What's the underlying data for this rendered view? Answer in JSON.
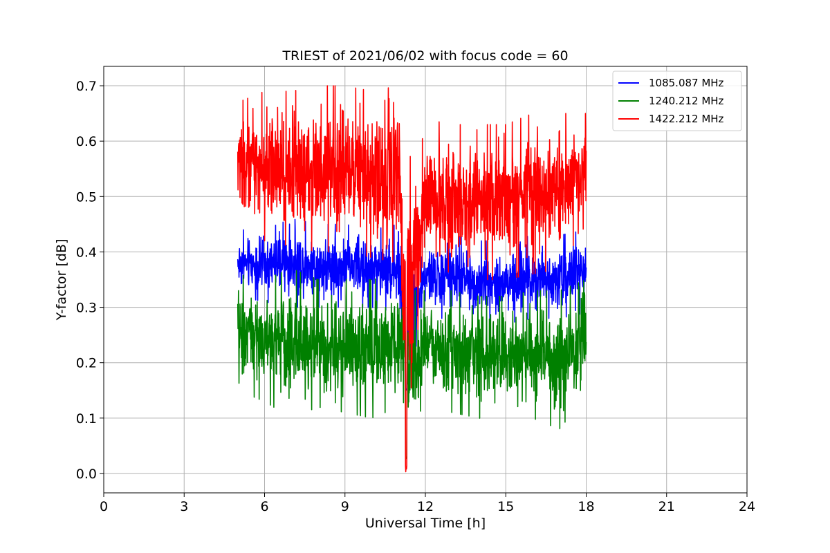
{
  "chart_data": {
    "type": "line",
    "title": "TRIEST of 2021/06/02 with focus code = 60",
    "xlabel": "Universal Time [h]",
    "ylabel": "Y-factor [dB]",
    "xlim": [
      0,
      24
    ],
    "ylim": [
      -0.035,
      0.735
    ],
    "xticks": [
      0,
      3,
      6,
      9,
      12,
      15,
      18,
      21,
      24
    ],
    "yticks": [
      0.0,
      0.1,
      0.2,
      0.3,
      0.4,
      0.5,
      0.6,
      0.7
    ],
    "grid": true,
    "legend_position": "top-right",
    "x_range_of_data": [
      5.0,
      18.0
    ],
    "series": [
      {
        "name": "1085.087 MHz",
        "color": "#0000ff",
        "envelope_x": [
          5,
          6,
          7,
          8,
          9,
          10,
          11,
          11.3,
          12,
          13,
          14,
          15,
          16,
          17,
          18
        ],
        "envelope_low": [
          0.32,
          0.31,
          0.3,
          0.3,
          0.3,
          0.3,
          0.29,
          0.14,
          0.28,
          0.28,
          0.27,
          0.27,
          0.28,
          0.28,
          0.29
        ],
        "envelope_high": [
          0.44,
          0.44,
          0.46,
          0.45,
          0.45,
          0.44,
          0.45,
          0.39,
          0.43,
          0.43,
          0.42,
          0.42,
          0.43,
          0.43,
          0.44
        ]
      },
      {
        "name": "1240.212 MHz",
        "color": "#008000",
        "envelope_x": [
          5,
          6,
          7,
          8,
          9,
          10,
          11,
          11.3,
          12,
          13,
          14,
          15,
          16,
          17,
          18
        ],
        "envelope_low": [
          0.15,
          0.13,
          0.1,
          0.12,
          0.11,
          0.1,
          0.12,
          0.02,
          0.13,
          0.11,
          0.1,
          0.09,
          0.1,
          0.08,
          0.14
        ],
        "envelope_high": [
          0.36,
          0.35,
          0.37,
          0.35,
          0.35,
          0.35,
          0.36,
          0.33,
          0.33,
          0.33,
          0.32,
          0.32,
          0.33,
          0.33,
          0.35
        ]
      },
      {
        "name": "1422.212 MHz",
        "color": "#ff0000",
        "envelope_x": [
          5,
          6,
          7,
          8,
          9,
          10,
          11,
          11.3,
          12,
          13,
          14,
          15,
          16,
          17,
          18
        ],
        "envelope_low": [
          0.45,
          0.42,
          0.41,
          0.4,
          0.4,
          0.39,
          0.38,
          0.0,
          0.35,
          0.34,
          0.35,
          0.35,
          0.36,
          0.37,
          0.45
        ],
        "envelope_high": [
          0.67,
          0.69,
          0.69,
          0.7,
          0.7,
          0.69,
          0.7,
          0.6,
          0.64,
          0.63,
          0.63,
          0.63,
          0.65,
          0.65,
          0.65
        ]
      }
    ]
  }
}
